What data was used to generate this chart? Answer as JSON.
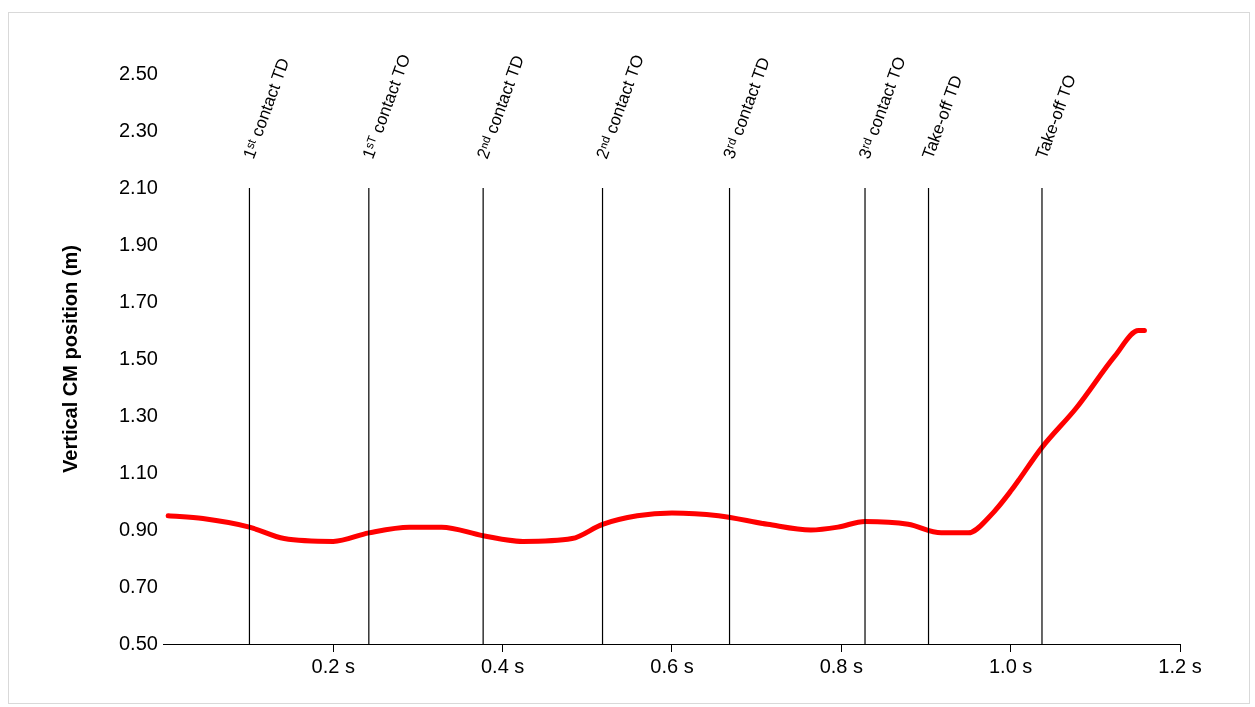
{
  "chart_data": {
    "type": "line",
    "ylabel": "Vertical CM position (m)",
    "xlim": [
      0,
      1.2
    ],
    "xticks": [
      {
        "value": 0.2,
        "label": "0.2 s"
      },
      {
        "value": 0.4,
        "label": "0.4 s"
      },
      {
        "value": 0.6,
        "label": "0.6 s"
      },
      {
        "value": 0.8,
        "label": "0.8 s"
      },
      {
        "value": 1.0,
        "label": "1.0 s"
      },
      {
        "value": 1.2,
        "label": "1.2 s"
      }
    ],
    "ylim": [
      0.5,
      2.5
    ],
    "yticks": [
      {
        "value": 0.5,
        "label": "0.50"
      },
      {
        "value": 0.7,
        "label": "0.70"
      },
      {
        "value": 0.9,
        "label": "0.90"
      },
      {
        "value": 1.1,
        "label": "1.10"
      },
      {
        "value": 1.3,
        "label": "1.30"
      },
      {
        "value": 1.5,
        "label": "1.50"
      },
      {
        "value": 1.7,
        "label": "1.70"
      },
      {
        "value": 1.9,
        "label": "1.90"
      },
      {
        "value": 2.1,
        "label": "2.10"
      },
      {
        "value": 2.3,
        "label": "2.30"
      },
      {
        "value": 2.5,
        "label": "2.50"
      }
    ],
    "grid": false,
    "legend": false,
    "marker": "none",
    "line_style": "solid",
    "series": [
      {
        "color": "#ff0000",
        "x": [
          0.005,
          0.046,
          0.101,
          0.142,
          0.2,
          0.242,
          0.29,
          0.328,
          0.377,
          0.424,
          0.482,
          0.518,
          0.559,
          0.6,
          0.655,
          0.713,
          0.764,
          0.796,
          0.828,
          0.879,
          0.918,
          0.95,
          0.976,
          1.001,
          1.037,
          1.078,
          1.123,
          1.151,
          1.158
        ],
        "values": [
          0.95,
          0.94,
          0.91,
          0.87,
          0.86,
          0.89,
          0.91,
          0.91,
          0.88,
          0.86,
          0.87,
          0.92,
          0.95,
          0.96,
          0.95,
          0.92,
          0.9,
          0.91,
          0.93,
          0.92,
          0.89,
          0.89,
          0.95,
          1.04,
          1.19,
          1.33,
          1.51,
          1.6,
          1.6
        ]
      }
    ],
    "ref_lines": [
      {
        "axis": "x",
        "value": 0.101,
        "label": "1ˢᵗ contact TD",
        "color": "#000000"
      },
      {
        "axis": "x",
        "value": 0.242,
        "label": "1ˢᵀ contact TO",
        "color": "#000000"
      },
      {
        "axis": "x",
        "value": 0.377,
        "label": "2ⁿᵈ contact TD",
        "color": "#000000"
      },
      {
        "axis": "x",
        "value": 0.518,
        "label": "2ⁿᵈ contact TO",
        "color": "#000000"
      },
      {
        "axis": "x",
        "value": 0.668,
        "label": "3ʳᵈ contact TD",
        "color": "#000000"
      },
      {
        "axis": "x",
        "value": 0.828,
        "label": "3ʳᵈ contact TO",
        "color": "#000000"
      },
      {
        "axis": "x",
        "value": 0.903,
        "label": "Take-off TD",
        "color": "#000000"
      },
      {
        "axis": "x",
        "value": 1.037,
        "label": "Take-off TO",
        "color": "#000000"
      }
    ]
  }
}
